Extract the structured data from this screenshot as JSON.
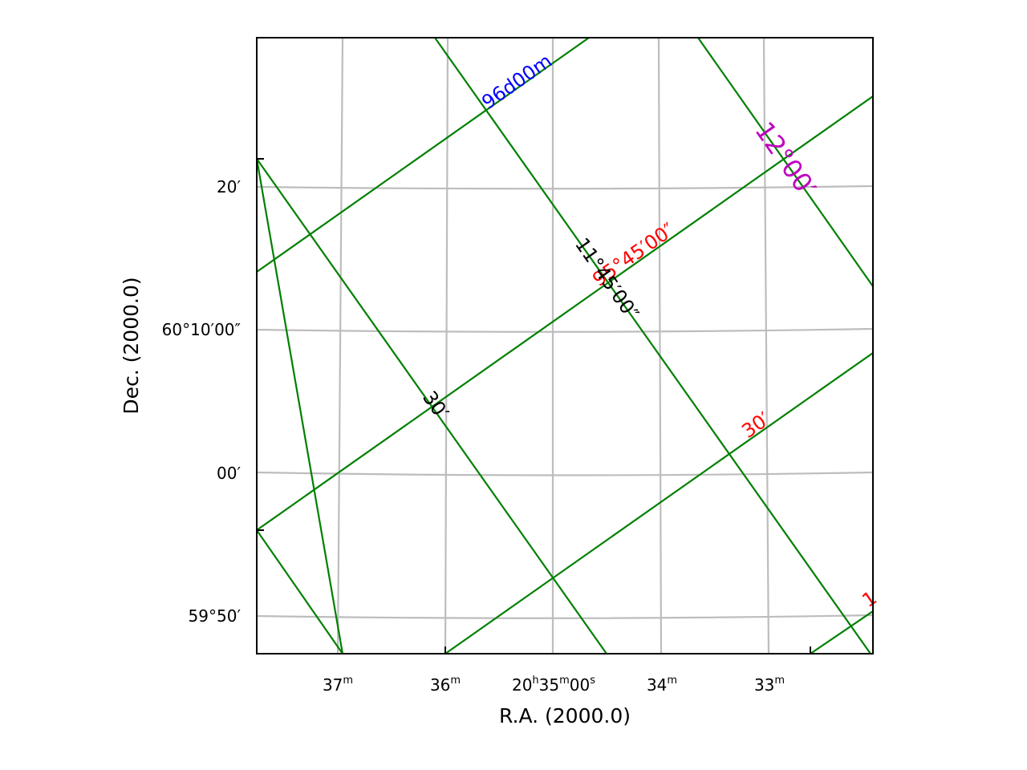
{
  "chart_data": {
    "type": "sky-coordinate-grid",
    "xlabel": "R.A. (2000.0)",
    "ylabel": "Dec. (2000.0)",
    "x_ticks": [
      {
        "main": "37",
        "unit": "m",
        "ra_min": 37
      },
      {
        "main": "36",
        "unit": "m",
        "ra_min": 36
      },
      {
        "pre": "20",
        "unit_h": "h",
        "mid": "35",
        "unit_m": "m",
        "post": "00",
        "unit_s": "s",
        "ra_min": 35
      },
      {
        "main": "34",
        "unit": "m",
        "ra_min": 34
      },
      {
        "main": "33",
        "unit": "m",
        "ra_min": 33
      }
    ],
    "y_ticks": [
      {
        "label": "20′",
        "dec_arcmin": 20
      },
      {
        "label": "60°10′00″",
        "dec_arcmin": 10
      },
      {
        "label": "00′",
        "dec_arcmin": 0
      },
      {
        "label": "59°50′",
        "dec_arcmin": -10
      }
    ],
    "overlay_labels": [
      {
        "text": "96d00m",
        "color": "#0000ff",
        "size": 24
      },
      {
        "text": "12°00′",
        "color": "#bf00bf",
        "size": 32
      },
      {
        "text": "95°45′00″",
        "color": "#ff0000",
        "size": 24
      },
      {
        "text": "11°45′00″",
        "color": "#000000",
        "size": 24
      },
      {
        "text": "30′",
        "color": "#000000",
        "size": 24
      },
      {
        "text": "30′",
        "color": "#ff0000",
        "size": 24
      },
      {
        "text": "1",
        "color": "#ff0000",
        "size": 24
      }
    ],
    "colors": {
      "primary_grid": "#bdbdbd",
      "secondary_grid": "#008000",
      "frame": "#000000"
    }
  }
}
